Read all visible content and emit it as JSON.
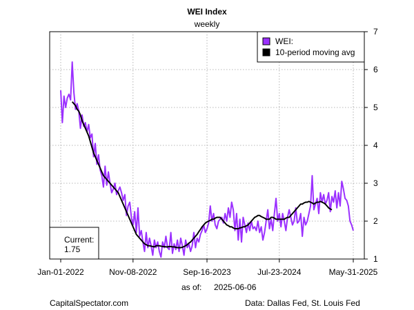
{
  "chart_data": {
    "type": "line",
    "title": "WEI Index",
    "subtitle": "weekly",
    "xlabel": "",
    "ylabel": "",
    "ylim": [
      1,
      7
    ],
    "yticks": [
      1,
      2,
      3,
      4,
      5,
      6,
      7
    ],
    "x_tick_labels": [
      "Jan-01-2022",
      "Nov-08-2022",
      "Sep-16-2023",
      "Jul-23-2024",
      "May-31-2025"
    ],
    "x_tick_index": [
      0,
      44,
      89,
      133,
      178
    ],
    "grid": true,
    "legend": {
      "position": "top-right",
      "entries": [
        {
          "label": "WEI:",
          "color": "#9b30ff"
        },
        {
          "label": "10-period moving avg",
          "color": "#000000"
        }
      ]
    },
    "annotation": {
      "label": "Current:",
      "value": "1.75",
      "position": "bottom-left"
    },
    "series": [
      {
        "name": "WEI",
        "color": "#9b30ff",
        "values": [
          5.45,
          4.6,
          5.3,
          5.0,
          5.25,
          5.35,
          5.2,
          6.2,
          5.4,
          4.95,
          5.1,
          4.9,
          4.45,
          4.8,
          4.5,
          4.6,
          4.35,
          4.55,
          4.2,
          4.3,
          3.7,
          4.05,
          3.5,
          3.75,
          3.35,
          3.2,
          2.9,
          3.45,
          2.95,
          3.3,
          3.0,
          2.75,
          2.85,
          3.0,
          2.7,
          2.8,
          2.9,
          2.75,
          2.55,
          2.7,
          2.15,
          2.4,
          2.5,
          2.1,
          1.9,
          2.25,
          1.7,
          2.35,
          1.6,
          1.75,
          1.45,
          1.2,
          1.7,
          1.3,
          1.55,
          1.35,
          1.1,
          1.5,
          1.3,
          1.45,
          1.2,
          1.05,
          1.45,
          1.3,
          1.6,
          1.3,
          1.25,
          1.7,
          1.15,
          1.4,
          1.25,
          1.5,
          1.2,
          1.55,
          1.35,
          1.1,
          1.5,
          1.3,
          1.4,
          1.2,
          1.35,
          1.7,
          1.3,
          1.55,
          1.45,
          1.65,
          1.75,
          1.9,
          1.7,
          1.8,
          1.95,
          2.4,
          2.0,
          2.2,
          1.9,
          1.8,
          2.0,
          2.05,
          2.1,
          1.95,
          2.2,
          2.0,
          2.35,
          2.1,
          2.5,
          2.3,
          1.75,
          2.2,
          1.5,
          2.05,
          1.45,
          2.1,
          1.9,
          1.7,
          1.95,
          1.75,
          2.0,
          1.8,
          1.85,
          1.75,
          2.0,
          1.7,
          1.85,
          1.5,
          1.7,
          2.0,
          2.3,
          1.8,
          2.05,
          1.75,
          2.2,
          2.6,
          2.0,
          2.2,
          1.85,
          2.2,
          2.0,
          1.75,
          2.1,
          2.3,
          2.1,
          1.9,
          2.0,
          2.35,
          1.95,
          2.0,
          2.2,
          1.6,
          2.1,
          1.9,
          2.0,
          2.2,
          2.4,
          3.2,
          2.3,
          2.45,
          2.6,
          2.2,
          2.75,
          2.5,
          2.7,
          2.45,
          2.55,
          2.75,
          2.25,
          2.65,
          2.5,
          2.8,
          2.35,
          2.75,
          2.4,
          3.05,
          2.85,
          2.6,
          2.55,
          2.4,
          2.0,
          1.9,
          1.75
        ]
      },
      {
        "name": "10-period moving avg",
        "color": "#000000",
        "start_index": 7,
        "values": [
          5.15,
          5.1,
          5.05,
          4.95,
          4.9,
          4.8,
          4.65,
          4.55,
          4.45,
          4.35,
          4.25,
          4.1,
          3.95,
          3.8,
          3.7,
          3.6,
          3.5,
          3.4,
          3.3,
          3.2,
          3.15,
          3.1,
          3.05,
          3.0,
          2.95,
          2.9,
          2.85,
          2.8,
          2.75,
          2.65,
          2.55,
          2.45,
          2.35,
          2.25,
          2.15,
          2.05,
          1.95,
          1.85,
          1.75,
          1.65,
          1.6,
          1.55,
          1.5,
          1.45,
          1.4,
          1.38,
          1.35,
          1.35,
          1.34,
          1.33,
          1.32,
          1.35,
          1.35,
          1.35,
          1.34,
          1.33,
          1.33,
          1.32,
          1.32,
          1.33,
          1.33,
          1.32,
          1.32,
          1.31,
          1.3,
          1.3,
          1.3,
          1.31,
          1.33,
          1.35,
          1.38,
          1.42,
          1.45,
          1.5,
          1.55,
          1.6,
          1.65,
          1.72,
          1.78,
          1.85,
          1.9,
          1.95,
          1.98,
          2.0,
          2.02,
          2.05,
          2.05,
          2.08,
          2.1,
          2.1,
          2.1,
          2.05,
          2.0,
          1.95,
          1.9,
          1.88,
          1.85,
          1.85,
          1.82,
          1.8,
          1.8,
          1.8,
          1.82,
          1.83,
          1.85,
          1.85,
          1.88,
          1.9,
          1.95,
          2.0,
          2.05,
          2.1,
          2.12,
          2.15,
          2.15,
          2.12,
          2.1,
          2.08,
          2.05,
          2.05,
          2.05,
          2.1,
          2.1,
          2.08,
          2.05,
          2.05,
          2.05,
          2.05,
          2.05,
          2.05,
          2.08,
          2.1,
          2.1,
          2.15,
          2.2,
          2.25,
          2.3,
          2.35,
          2.4,
          2.45,
          2.45,
          2.48,
          2.5,
          2.5,
          2.52,
          2.5,
          2.48,
          2.45,
          2.48,
          2.5,
          2.5,
          2.52,
          2.5,
          2.48,
          2.45,
          2.4,
          2.35,
          2.32,
          2.3
        ]
      }
    ]
  },
  "footer": {
    "asof_label": "as of:",
    "asof_date": "2025-06-06",
    "source_left": "CapitalSpectator.com",
    "source_right": "Data: Dallas Fed, St. Louis Fed"
  }
}
